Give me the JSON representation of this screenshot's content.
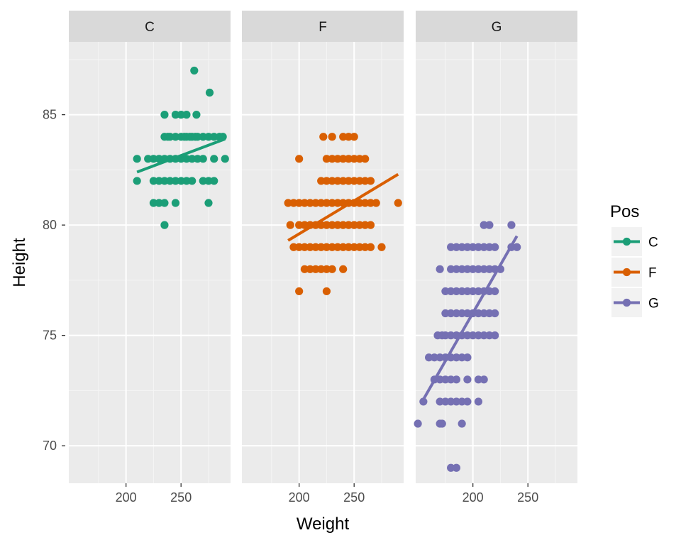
{
  "chart_data": {
    "type": "scatter",
    "xlabel": "Weight",
    "ylabel": "Height",
    "xlim": [
      148,
      295
    ],
    "ylim": [
      68.3,
      88.3
    ],
    "x_ticks": [
      200,
      250
    ],
    "y_ticks": [
      70,
      75,
      80,
      85
    ],
    "grid": true,
    "legend": {
      "title": "Pos",
      "position": "right",
      "entries": [
        "C",
        "F",
        "G"
      ]
    },
    "colors": {
      "C": "#1b9e77",
      "F": "#d95f02",
      "G": "#7570b3"
    },
    "facets": [
      {
        "label": "C",
        "fit": {
          "x": [
            210,
            290
          ],
          "y": [
            82.4,
            83.9
          ]
        },
        "points": [
          [
            262,
            87
          ],
          [
            276,
            86
          ],
          [
            235,
            85
          ],
          [
            245,
            85
          ],
          [
            250,
            85
          ],
          [
            255,
            85
          ],
          [
            264,
            85
          ],
          [
            235,
            84
          ],
          [
            238,
            84
          ],
          [
            240,
            84
          ],
          [
            245,
            84
          ],
          [
            250,
            84
          ],
          [
            253,
            84
          ],
          [
            255,
            84
          ],
          [
            258,
            84
          ],
          [
            260,
            84
          ],
          [
            263,
            84
          ],
          [
            265,
            84
          ],
          [
            270,
            84
          ],
          [
            275,
            84
          ],
          [
            280,
            84
          ],
          [
            285,
            84
          ],
          [
            288,
            84
          ],
          [
            210,
            83
          ],
          [
            220,
            83
          ],
          [
            225,
            83
          ],
          [
            230,
            83
          ],
          [
            235,
            83
          ],
          [
            240,
            83
          ],
          [
            245,
            83
          ],
          [
            250,
            83
          ],
          [
            255,
            83
          ],
          [
            260,
            83
          ],
          [
            265,
            83
          ],
          [
            270,
            83
          ],
          [
            280,
            83
          ],
          [
            290,
            83
          ],
          [
            210,
            82
          ],
          [
            225,
            82
          ],
          [
            230,
            82
          ],
          [
            235,
            82
          ],
          [
            240,
            82
          ],
          [
            245,
            82
          ],
          [
            250,
            82
          ],
          [
            255,
            82
          ],
          [
            260,
            82
          ],
          [
            270,
            82
          ],
          [
            275,
            82
          ],
          [
            280,
            82
          ],
          [
            225,
            81
          ],
          [
            230,
            81
          ],
          [
            235,
            81
          ],
          [
            245,
            81
          ],
          [
            275,
            81
          ],
          [
            235,
            80
          ]
        ]
      },
      {
        "label": "F",
        "fit": {
          "x": [
            190,
            290
          ],
          "y": [
            79.3,
            82.3
          ]
        },
        "points": [
          [
            222,
            84
          ],
          [
            230,
            84
          ],
          [
            240,
            84
          ],
          [
            245,
            84
          ],
          [
            250,
            84
          ],
          [
            200,
            83
          ],
          [
            225,
            83
          ],
          [
            230,
            83
          ],
          [
            235,
            83
          ],
          [
            240,
            83
          ],
          [
            245,
            83
          ],
          [
            250,
            83
          ],
          [
            255,
            83
          ],
          [
            260,
            83
          ],
          [
            220,
            82
          ],
          [
            225,
            82
          ],
          [
            230,
            82
          ],
          [
            235,
            82
          ],
          [
            240,
            82
          ],
          [
            245,
            82
          ],
          [
            250,
            82
          ],
          [
            255,
            82
          ],
          [
            260,
            82
          ],
          [
            265,
            82
          ],
          [
            190,
            81
          ],
          [
            195,
            81
          ],
          [
            200,
            81
          ],
          [
            205,
            81
          ],
          [
            210,
            81
          ],
          [
            215,
            81
          ],
          [
            220,
            81
          ],
          [
            225,
            81
          ],
          [
            230,
            81
          ],
          [
            235,
            81
          ],
          [
            240,
            81
          ],
          [
            245,
            81
          ],
          [
            250,
            81
          ],
          [
            255,
            81
          ],
          [
            260,
            81
          ],
          [
            265,
            81
          ],
          [
            270,
            81
          ],
          [
            290,
            81
          ],
          [
            192,
            80
          ],
          [
            200,
            80
          ],
          [
            205,
            80
          ],
          [
            210,
            80
          ],
          [
            215,
            80
          ],
          [
            220,
            80
          ],
          [
            225,
            80
          ],
          [
            230,
            80
          ],
          [
            235,
            80
          ],
          [
            240,
            80
          ],
          [
            245,
            80
          ],
          [
            250,
            80
          ],
          [
            255,
            80
          ],
          [
            260,
            80
          ],
          [
            265,
            80
          ],
          [
            195,
            79
          ],
          [
            200,
            79
          ],
          [
            205,
            79
          ],
          [
            210,
            79
          ],
          [
            215,
            79
          ],
          [
            220,
            79
          ],
          [
            225,
            79
          ],
          [
            230,
            79
          ],
          [
            235,
            79
          ],
          [
            240,
            79
          ],
          [
            245,
            79
          ],
          [
            250,
            79
          ],
          [
            255,
            79
          ],
          [
            260,
            79
          ],
          [
            265,
            79
          ],
          [
            275,
            79
          ],
          [
            205,
            78
          ],
          [
            210,
            78
          ],
          [
            215,
            78
          ],
          [
            220,
            78
          ],
          [
            225,
            78
          ],
          [
            230,
            78
          ],
          [
            240,
            78
          ],
          [
            200,
            77
          ],
          [
            225,
            77
          ]
        ]
      },
      {
        "label": "G",
        "fit": {
          "x": [
            155,
            240
          ],
          "y": [
            72.1,
            79.5
          ]
        },
        "points": [
          [
            210,
            80
          ],
          [
            215,
            80
          ],
          [
            235,
            80
          ],
          [
            180,
            79
          ],
          [
            185,
            79
          ],
          [
            190,
            79
          ],
          [
            195,
            79
          ],
          [
            200,
            79
          ],
          [
            205,
            79
          ],
          [
            210,
            79
          ],
          [
            215,
            79
          ],
          [
            220,
            79
          ],
          [
            235,
            79
          ],
          [
            240,
            79
          ],
          [
            170,
            78
          ],
          [
            180,
            78
          ],
          [
            185,
            78
          ],
          [
            190,
            78
          ],
          [
            195,
            78
          ],
          [
            200,
            78
          ],
          [
            205,
            78
          ],
          [
            210,
            78
          ],
          [
            215,
            78
          ],
          [
            220,
            78
          ],
          [
            225,
            78
          ],
          [
            175,
            77
          ],
          [
            180,
            77
          ],
          [
            185,
            77
          ],
          [
            190,
            77
          ],
          [
            195,
            77
          ],
          [
            200,
            77
          ],
          [
            205,
            77
          ],
          [
            210,
            77
          ],
          [
            215,
            77
          ],
          [
            220,
            77
          ],
          [
            175,
            76
          ],
          [
            180,
            76
          ],
          [
            185,
            76
          ],
          [
            190,
            76
          ],
          [
            195,
            76
          ],
          [
            200,
            76
          ],
          [
            205,
            76
          ],
          [
            210,
            76
          ],
          [
            215,
            76
          ],
          [
            220,
            76
          ],
          [
            168,
            75
          ],
          [
            172,
            75
          ],
          [
            175,
            75
          ],
          [
            180,
            75
          ],
          [
            185,
            75
          ],
          [
            190,
            75
          ],
          [
            195,
            75
          ],
          [
            200,
            75
          ],
          [
            205,
            75
          ],
          [
            210,
            75
          ],
          [
            215,
            75
          ],
          [
            220,
            75
          ],
          [
            160,
            74
          ],
          [
            165,
            74
          ],
          [
            170,
            74
          ],
          [
            175,
            74
          ],
          [
            180,
            74
          ],
          [
            185,
            74
          ],
          [
            190,
            74
          ],
          [
            195,
            74
          ],
          [
            165,
            73
          ],
          [
            170,
            73
          ],
          [
            175,
            73
          ],
          [
            180,
            73
          ],
          [
            185,
            73
          ],
          [
            195,
            73
          ],
          [
            205,
            73
          ],
          [
            210,
            73
          ],
          [
            155,
            72
          ],
          [
            170,
            72
          ],
          [
            175,
            72
          ],
          [
            180,
            72
          ],
          [
            185,
            72
          ],
          [
            190,
            72
          ],
          [
            195,
            72
          ],
          [
            205,
            72
          ],
          [
            150,
            71
          ],
          [
            170,
            71
          ],
          [
            172,
            71
          ],
          [
            190,
            71
          ],
          [
            180,
            69
          ],
          [
            185,
            69
          ]
        ]
      }
    ]
  }
}
